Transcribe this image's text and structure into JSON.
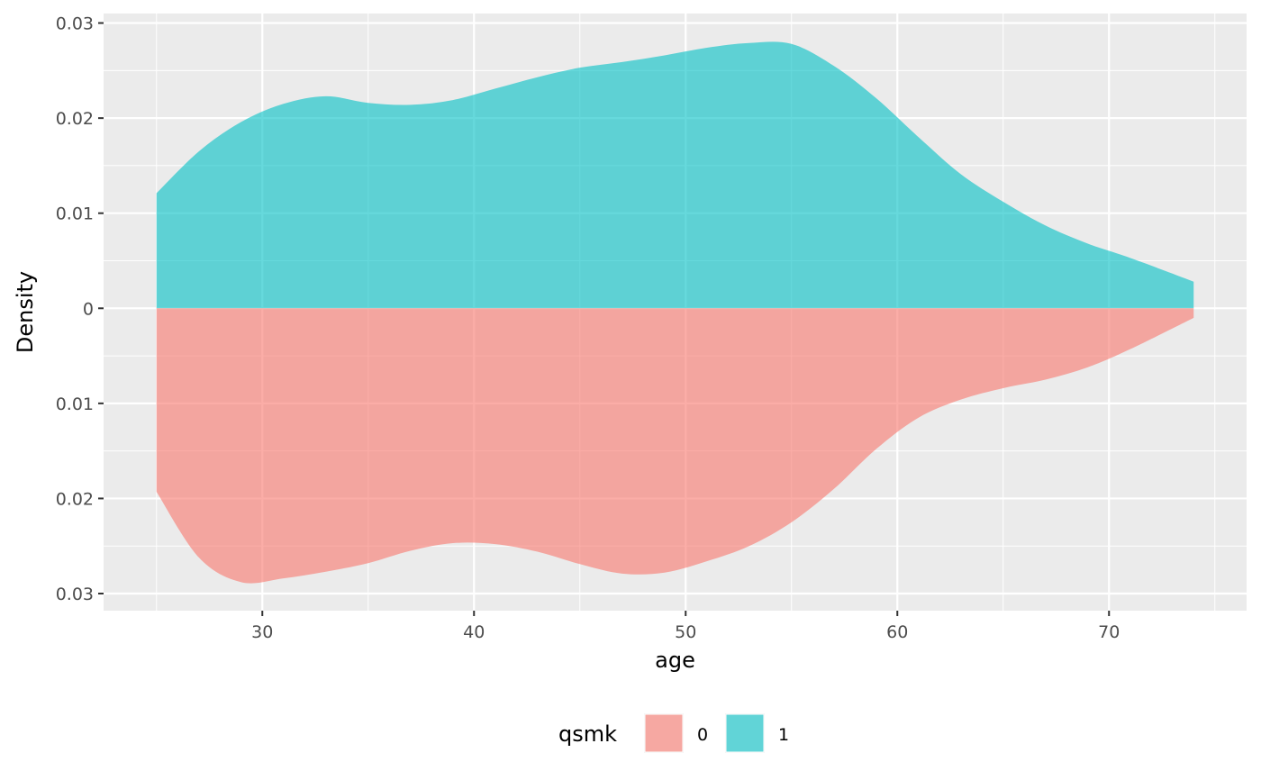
{
  "chart_data": {
    "type": "area",
    "subtype": "mirrored-density",
    "xlabel": "age",
    "ylabel": "Density",
    "xlim": [
      22.5,
      76.5
    ],
    "ylim": [
      -0.0318,
      0.031
    ],
    "x_ticks": [
      30,
      40,
      50,
      60,
      70
    ],
    "y_ticks": [
      {
        "value": 0.03,
        "label": "0.03"
      },
      {
        "value": 0.02,
        "label": "0.02"
      },
      {
        "value": 0.01,
        "label": "0.01"
      },
      {
        "value": 0,
        "label": "0"
      },
      {
        "value": -0.01,
        "label": "0.01"
      },
      {
        "value": -0.02,
        "label": "0.02"
      },
      {
        "value": -0.03,
        "label": "0.03"
      }
    ],
    "grid": true,
    "legend": {
      "title": "qsmk",
      "position": "bottom",
      "entries": [
        {
          "label": "0",
          "color": "#F8766D"
        },
        {
          "label": "1",
          "color": "#00BFC4"
        }
      ]
    },
    "series": [
      {
        "name": "1",
        "color": "#00BFC4",
        "direction": "up",
        "x": [
          25,
          27,
          29,
          31,
          33,
          35,
          37,
          39,
          41,
          43,
          45,
          47,
          49,
          51,
          53,
          55,
          57,
          59,
          61,
          63,
          65,
          67,
          69,
          71,
          74
        ],
        "y": [
          0.0121,
          0.0165,
          0.0196,
          0.0215,
          0.0223,
          0.0216,
          0.0214,
          0.0219,
          0.0231,
          0.0243,
          0.0253,
          0.0259,
          0.0266,
          0.0274,
          0.0279,
          0.0278,
          0.0255,
          0.0221,
          0.018,
          0.0141,
          0.0112,
          0.0087,
          0.0068,
          0.0053,
          0.0028
        ]
      },
      {
        "name": "0",
        "color": "#F8766D",
        "direction": "down",
        "x": [
          25,
          27,
          29,
          31,
          33,
          35,
          37,
          39,
          41,
          43,
          45,
          47,
          49,
          51,
          53,
          55,
          57,
          59,
          61,
          63,
          65,
          67,
          69,
          71,
          74
        ],
        "y": [
          0.0193,
          0.0262,
          0.0288,
          0.0284,
          0.0277,
          0.0268,
          0.0255,
          0.0247,
          0.0248,
          0.0256,
          0.0269,
          0.0279,
          0.0278,
          0.0266,
          0.025,
          0.0225,
          0.019,
          0.0148,
          0.0115,
          0.0096,
          0.0084,
          0.0075,
          0.0062,
          0.0043,
          0.001
        ]
      }
    ]
  }
}
